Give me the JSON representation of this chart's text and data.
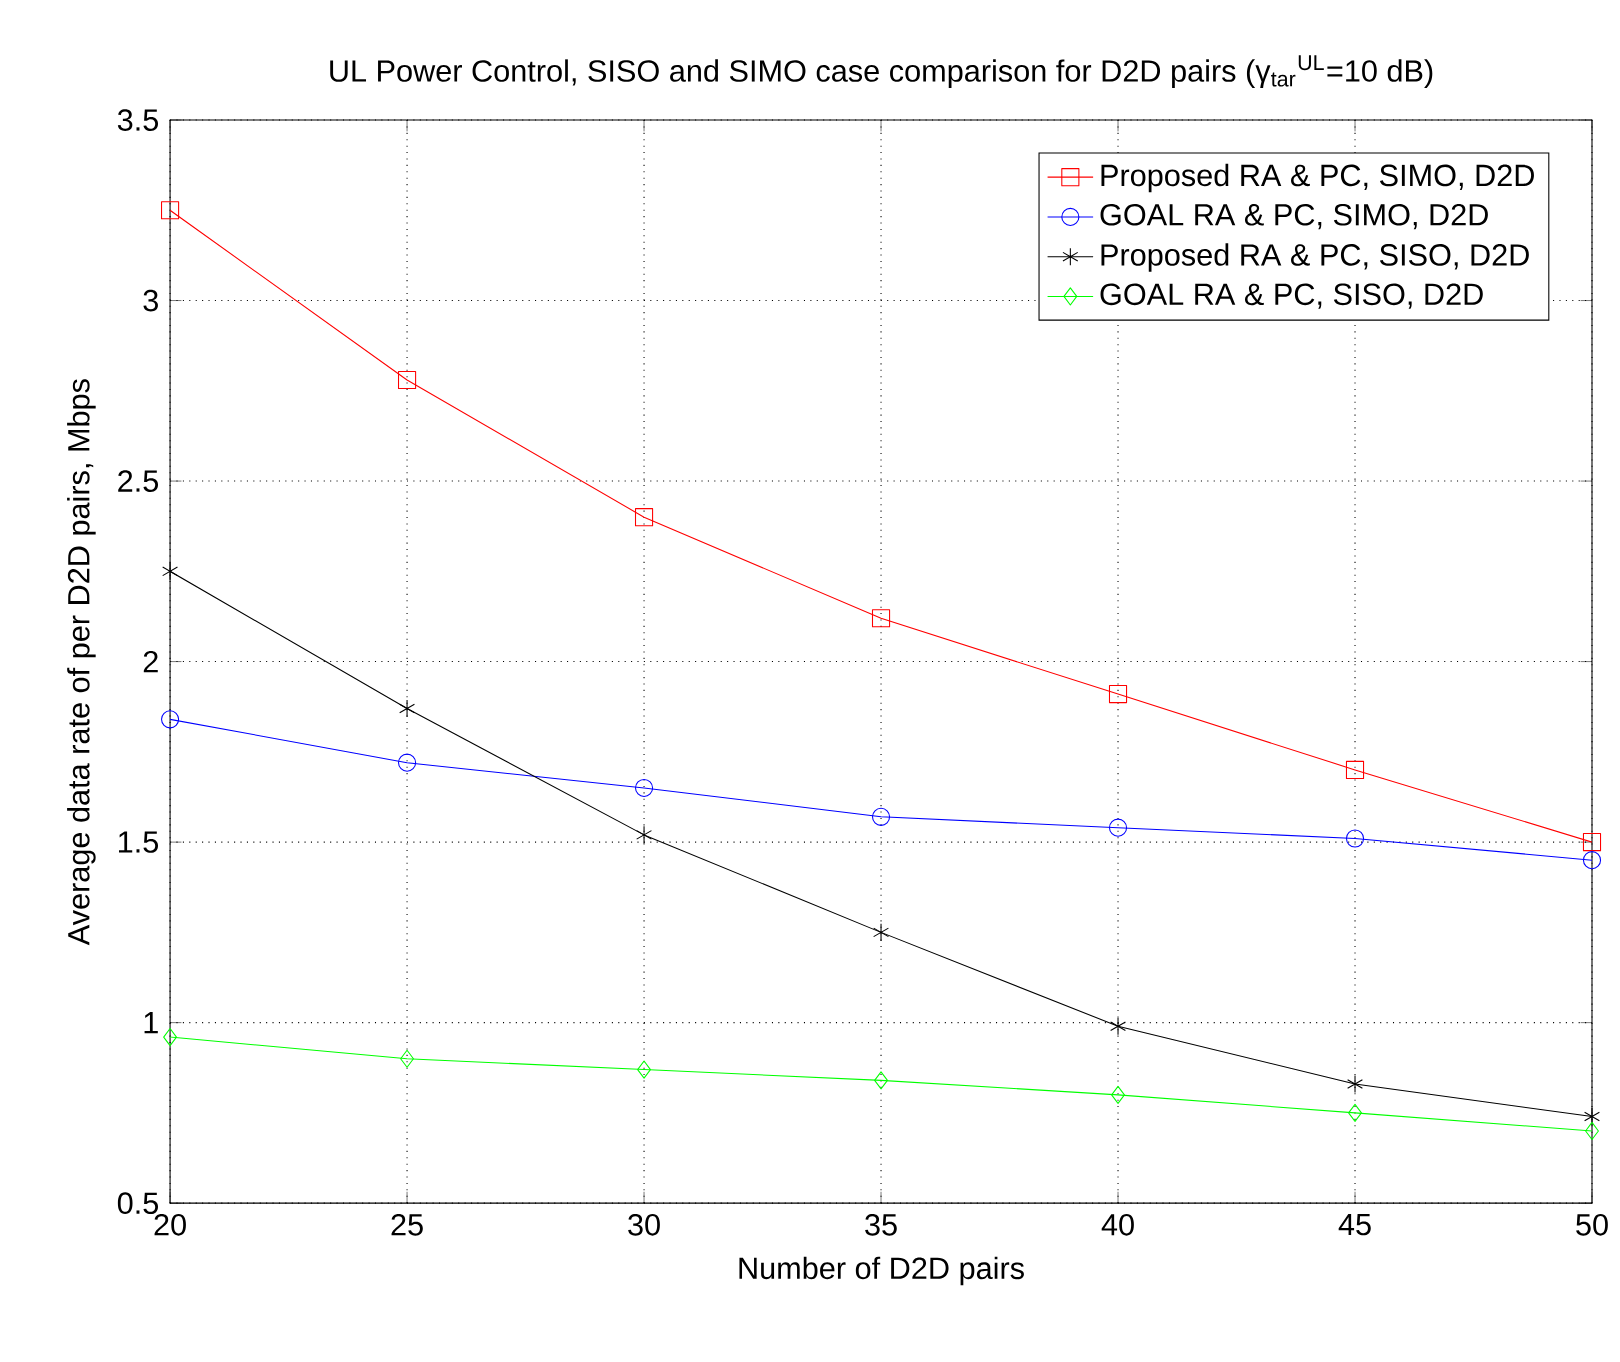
{
  "chart_data": {
    "type": "line",
    "title": "UL Power Control, SISO and SIMO case comparison for D2D pairs (γ$_{tar}$$^{UL}$=10 dB)",
    "xlabel": "Number of D2D pairs",
    "ylabel": "Average data rate of per D2D pairs, Mbps",
    "x": [
      20,
      25,
      30,
      35,
      40,
      45,
      50
    ],
    "series": [
      {
        "name": "Proposed RA & PC, SIMO, D2D",
        "color": "#ff0000",
        "marker": "square",
        "values": [
          3.25,
          2.78,
          2.4,
          2.12,
          1.91,
          1.7,
          1.5
        ]
      },
      {
        "name": "GOAL RA & PC, SIMO, D2D",
        "color": "#0000ff",
        "marker": "circle",
        "values": [
          1.84,
          1.72,
          1.65,
          1.57,
          1.54,
          1.51,
          1.45
        ]
      },
      {
        "name": "Proposed RA & PC, SISO, D2D",
        "color": "#000000",
        "marker": "cross",
        "values": [
          2.25,
          1.87,
          1.52,
          1.25,
          0.99,
          0.83,
          0.74
        ]
      },
      {
        "name": "GOAL RA & PC, SISO, D2D",
        "color": "#00ff00",
        "marker": "diamond",
        "values": [
          0.96,
          0.9,
          0.87,
          0.84,
          0.8,
          0.75,
          0.7
        ]
      }
    ],
    "xlim": [
      20,
      50
    ],
    "xticks": [
      20,
      25,
      30,
      35,
      40,
      45,
      50
    ],
    "ylim": [
      0.5,
      3.5
    ],
    "yticks": [
      0.5,
      1,
      1.5,
      2,
      2.5,
      3,
      3.5
    ],
    "grid": true,
    "legend": "top right",
    "line_style": "solid"
  }
}
